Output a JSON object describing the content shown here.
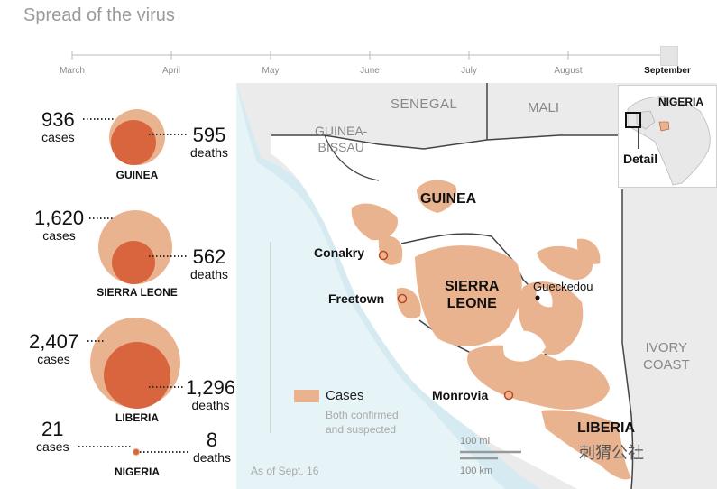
{
  "title": "Spread of the virus",
  "timeline": {
    "months": [
      "March",
      "April",
      "May",
      "June",
      "July",
      "August",
      "September"
    ],
    "active_month": "September"
  },
  "countries_stats": [
    {
      "name": "GUINEA",
      "cases": "936",
      "deaths": "595",
      "cases_label": "cases",
      "deaths_label": "deaths"
    },
    {
      "name": "SIERRA LEONE",
      "cases": "1,620",
      "deaths": "562",
      "cases_label": "cases",
      "deaths_label": "deaths"
    },
    {
      "name": "LIBERIA",
      "cases": "2,407",
      "deaths": "1,296",
      "cases_label": "cases",
      "deaths_label": "deaths"
    },
    {
      "name": "NIGERIA",
      "cases": "21",
      "deaths": "8",
      "cases_label": "cases",
      "deaths_label": "deaths"
    }
  ],
  "map_labels": {
    "senegal": "SENEGAL",
    "mali": "MALI",
    "guinea_bissau": "GUINEA-\nBISSAU",
    "guinea": "GUINEA",
    "sierra_leone": "SIERRA\nLEONE",
    "liberia": "LIBERIA",
    "ivory_coast": "IVORY\nCOAST"
  },
  "cities": {
    "conakry": "Conakry",
    "freetown": "Freetown",
    "monrovia": "Monrovia",
    "gueckedou": "Gueckedou"
  },
  "inset": {
    "nigeria": "NIGERIA",
    "detail": "Detail"
  },
  "legend": {
    "label": "Cases",
    "sub": "Both confirmed\nand suspected"
  },
  "as_of": "As of Sept. 16",
  "scale": {
    "mi": "100 mi",
    "km": "100 km"
  },
  "watermark": "刺猬公社",
  "colors": {
    "cases": "#eab38f",
    "deaths": "#d9653f",
    "sea": "#cfe8ef",
    "land": "#ffffff",
    "foreign_land": "#ebebeb"
  }
}
